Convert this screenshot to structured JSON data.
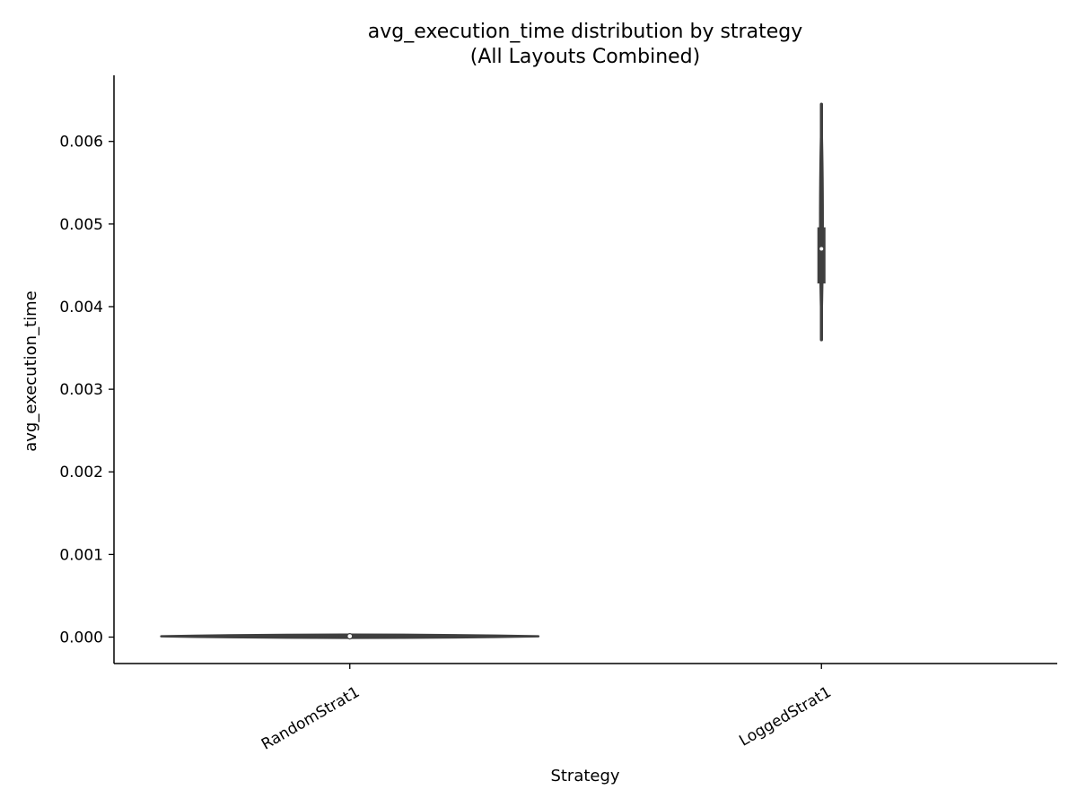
{
  "chart_data": {
    "type": "violin",
    "title_line1": "avg_execution_time distribution by strategy",
    "title_line2": "(All Layouts Combined)",
    "xlabel": "Strategy",
    "ylabel": "avg_execution_time",
    "categories": [
      "RandomStrat1",
      "LoggedStrat1"
    ],
    "ylim": [
      -0.00032,
      0.0068
    ],
    "yticks": [
      0.0,
      0.001,
      0.002,
      0.003,
      0.004,
      0.005,
      0.006
    ],
    "ytick_labels": [
      "0.000",
      "0.001",
      "0.002",
      "0.003",
      "0.004",
      "0.005",
      "0.006"
    ],
    "grid": false,
    "color": "#3f3f3f",
    "distributions": [
      {
        "category": "RandomStrat1",
        "min": 0.0,
        "q1": 4e-06,
        "median": 1e-05,
        "q3": 1.6e-05,
        "max": 2e-05,
        "relative_width": 0.8
      },
      {
        "category": "LoggedStrat1",
        "min": 0.0036,
        "q1": 0.00428,
        "median": 0.0047,
        "q3": 0.00496,
        "max": 0.00645,
        "relative_width": 0.01
      }
    ]
  }
}
